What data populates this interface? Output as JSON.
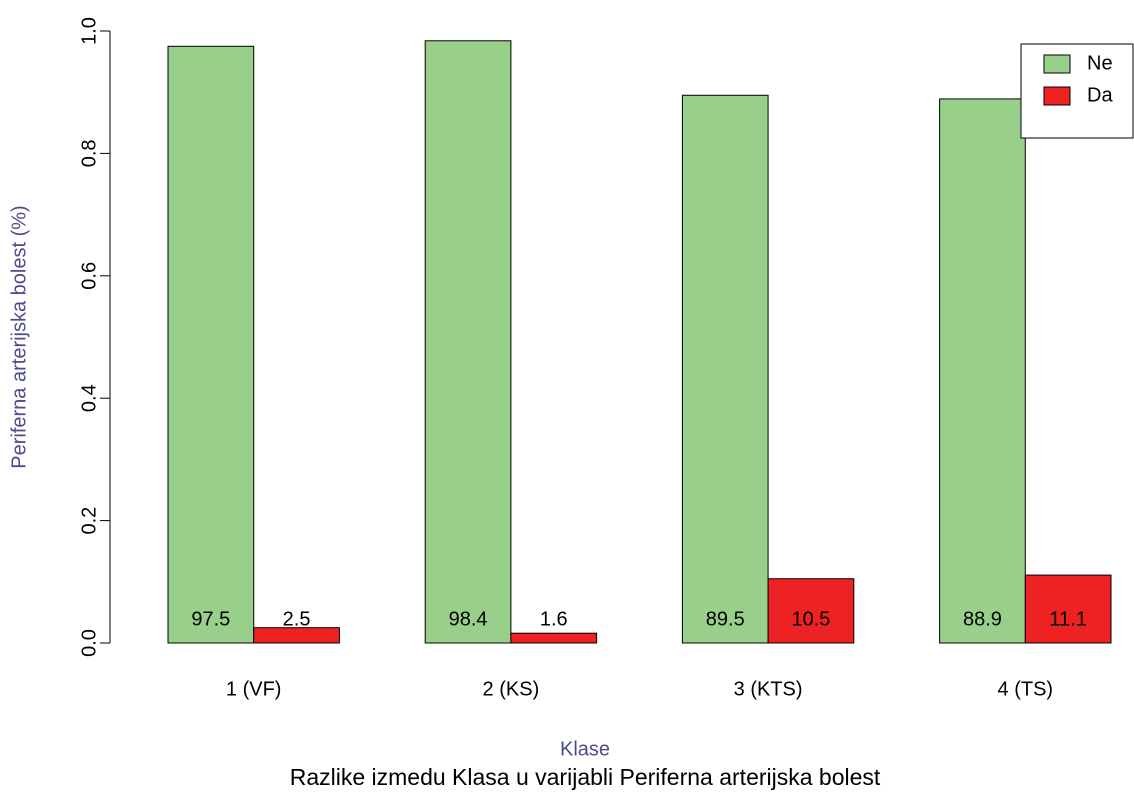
{
  "chart_data": {
    "type": "bar",
    "title": "Razlike izmedu Klasa u varijabli Periferna arterijska bolest",
    "x_label": "Klase",
    "y_label": "Periferna arterijska bolest (%)",
    "categories": [
      "1 (VF)",
      "2 (KS)",
      "3 (KTS)",
      "4 (TS)"
    ],
    "series": [
      {
        "name": "Ne",
        "color": "#98cf8a",
        "values": [
          0.975,
          0.984,
          0.895,
          0.889
        ],
        "value_labels": [
          "97.5",
          "98.4",
          "89.5",
          "88.9"
        ]
      },
      {
        "name": "Da",
        "color": "#ee2222",
        "values": [
          0.025,
          0.016,
          0.105,
          0.111
        ],
        "value_labels": [
          "2.5",
          "1.6",
          "10.5",
          "11.1"
        ]
      }
    ],
    "ylim": [
      0,
      1
    ],
    "yticks": [
      {
        "value": 0,
        "label": "0.0"
      },
      0.2,
      0.4,
      0.6,
      0.8,
      {
        "value": 1,
        "label": "1.0"
      }
    ],
    "legend": "top-right"
  }
}
